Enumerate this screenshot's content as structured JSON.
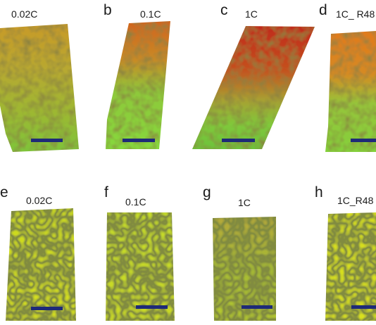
{
  "figure": {
    "panels": [
      {
        "letter": "",
        "caption": "0.02C"
      },
      {
        "letter": "b",
        "caption": "0.1C"
      },
      {
        "letter": "c",
        "caption": "1C"
      },
      {
        "letter": "d",
        "caption": "1C_ R48"
      },
      {
        "letter": "e",
        "caption": "0.02C"
      },
      {
        "letter": "f",
        "caption": "0.1C"
      },
      {
        "letter": "g",
        "caption": "1C"
      },
      {
        "letter": "h",
        "caption": "1C_R48"
      }
    ],
    "colors": {
      "background": "#ffffff",
      "scale_bar": "#1e2a78",
      "red_phase": "#c8321e",
      "orange_phase": "#d97a1e",
      "green_phase": "#7fd23a",
      "yellow_phase": "#d8e020",
      "dark_voids": "#5a5a28"
    }
  }
}
